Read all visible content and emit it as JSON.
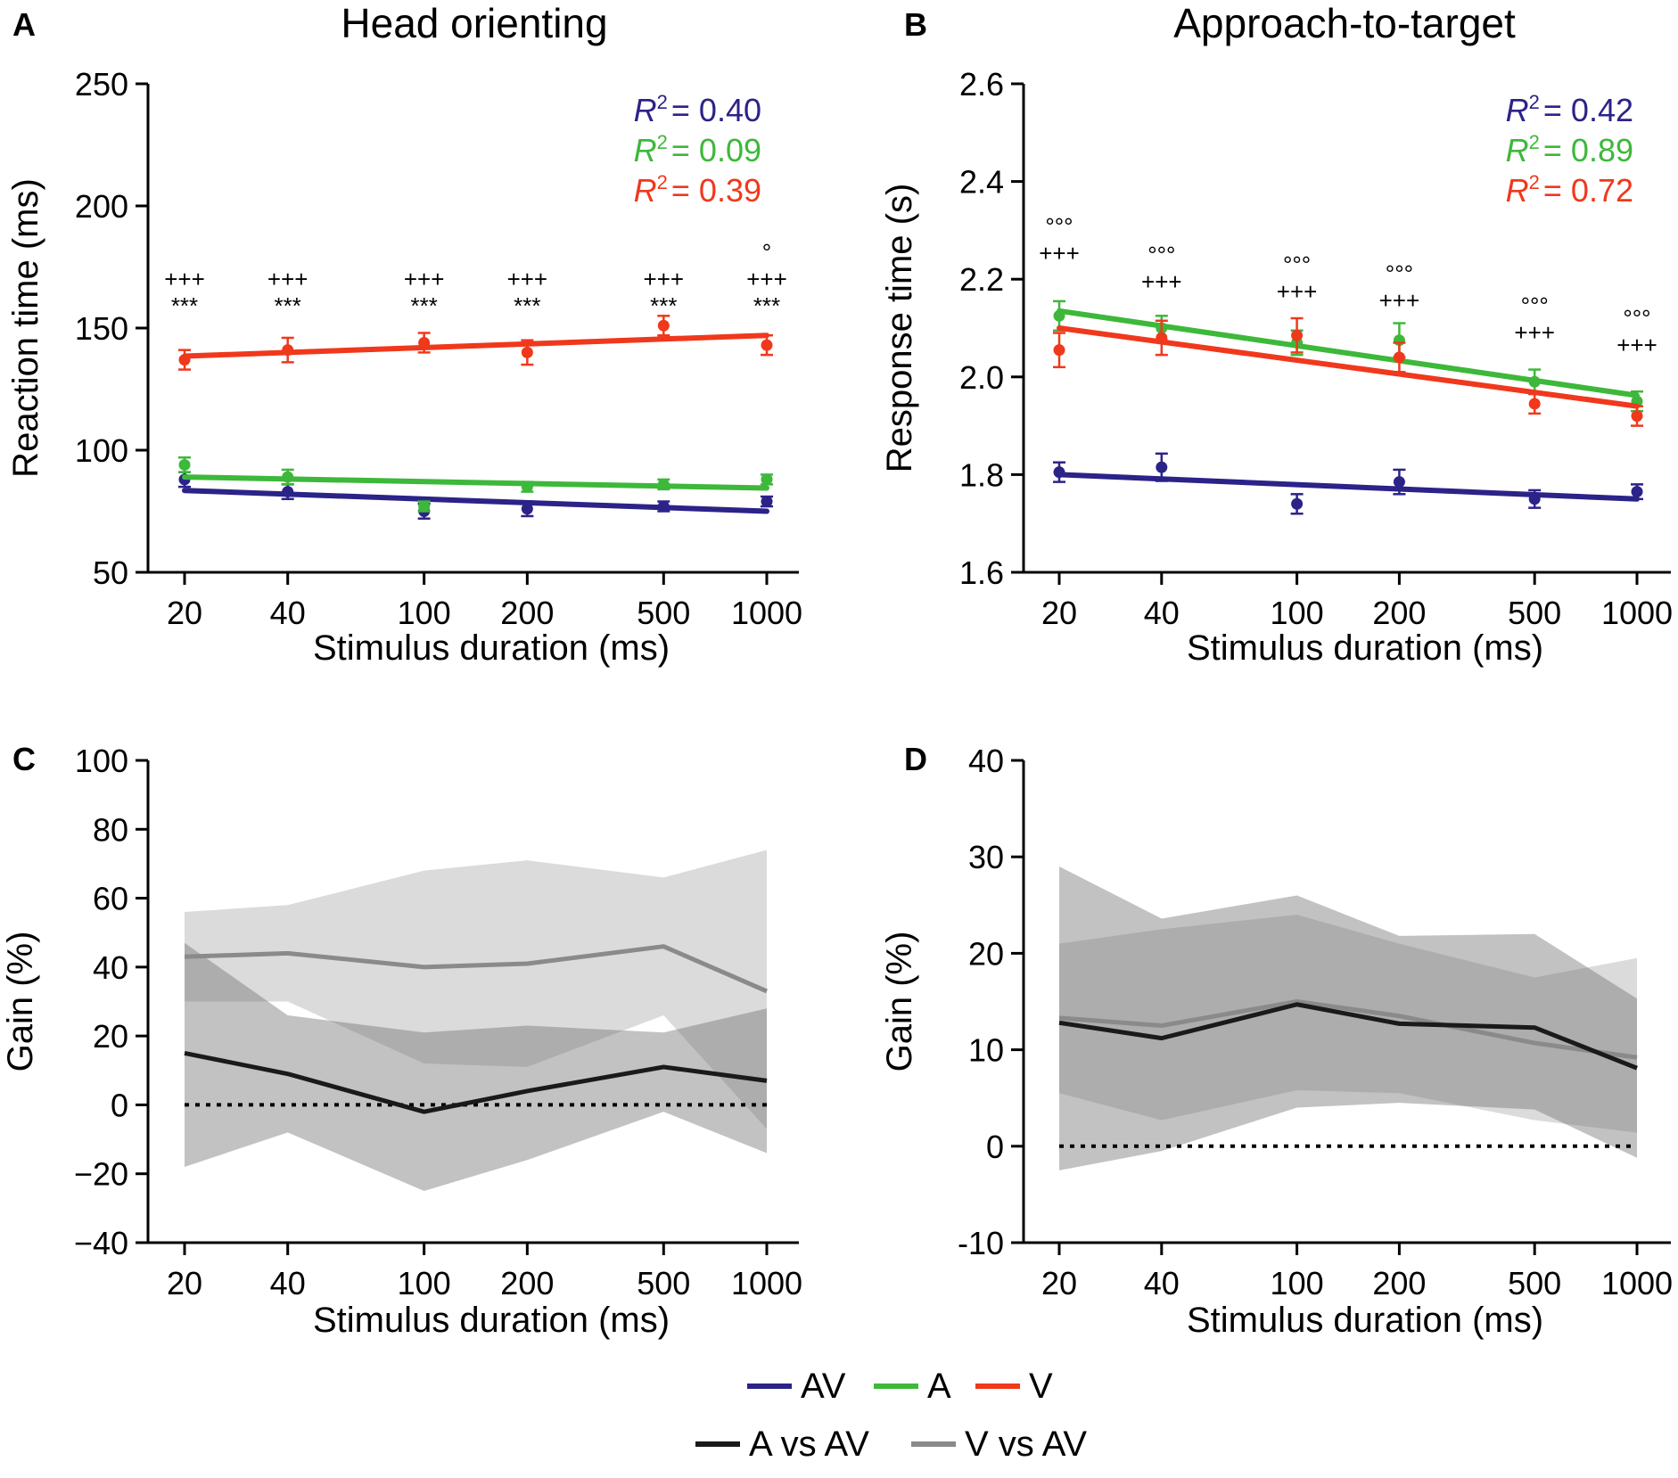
{
  "colors": {
    "AV": "#2b2388",
    "A": "#3db83a",
    "V": "#f0381c",
    "A_vs_AV": "#1a1a1a",
    "V_vs_AV": "#8a8a8a"
  },
  "legend": {
    "row1": [
      {
        "key": "AV",
        "label": "AV"
      },
      {
        "key": "A",
        "label": "A"
      },
      {
        "key": "V",
        "label": "V"
      }
    ],
    "row2": [
      {
        "key": "A_vs_AV",
        "label": "A vs AV"
      },
      {
        "key": "V_vs_AV",
        "label": "V vs AV"
      }
    ]
  },
  "chart_data": [
    {
      "id": "A",
      "panel_label": "A",
      "title": "Head orienting",
      "type": "line",
      "xlabel": "Stimulus duration (ms)",
      "ylabel": "Reaction time (ms)",
      "x_scale": "log",
      "x": [
        20,
        40,
        100,
        200,
        500,
        1000
      ],
      "x_ticks": [
        "20",
        "40",
        "100",
        "200",
        "500",
        "1000"
      ],
      "ylim": [
        50,
        250
      ],
      "y_ticks": [
        50,
        100,
        150,
        200,
        250
      ],
      "y_tick_labels": [
        "50",
        "100",
        "150",
        "200",
        "250"
      ],
      "series": [
        {
          "name": "AV",
          "points": [
            88,
            83,
            75,
            76,
            77,
            79
          ],
          "err": [
            3,
            3,
            3,
            3,
            2,
            2
          ],
          "fit": [
            83.5,
            75
          ]
        },
        {
          "name": "A",
          "points": [
            94,
            89,
            77,
            85,
            86,
            88
          ],
          "err": [
            3,
            3,
            2,
            2,
            2,
            2
          ],
          "fit": [
            89,
            84.5
          ]
        },
        {
          "name": "V",
          "points": [
            137,
            141,
            144,
            140,
            151,
            143
          ],
          "err": [
            4,
            5,
            4,
            5,
            4,
            4
          ],
          "fit": [
            138.5,
            147
          ]
        }
      ],
      "r2": [
        {
          "key": "AV",
          "label": "R",
          "sup": "2",
          "value": "= 0.40"
        },
        {
          "key": "A",
          "label": "R",
          "sup": "2",
          "value": "= 0.09"
        },
        {
          "key": "V",
          "label": "R",
          "sup": "2",
          "value": "= 0.39"
        }
      ],
      "annotations": [
        {
          "x": 20,
          "lines": [
            "+++",
            "***"
          ]
        },
        {
          "x": 40,
          "lines": [
            "+++",
            "***"
          ]
        },
        {
          "x": 100,
          "lines": [
            "+++",
            "***"
          ]
        },
        {
          "x": 200,
          "lines": [
            "+++",
            "***"
          ]
        },
        {
          "x": 500,
          "lines": [
            "+++",
            "***"
          ]
        },
        {
          "x": 1000,
          "lines": [
            "°",
            "+++",
            "***"
          ]
        }
      ]
    },
    {
      "id": "B",
      "panel_label": "B",
      "title": "Approach-to-target",
      "type": "line",
      "xlabel": "Stimulus duration (ms)",
      "ylabel": "Response time (s)",
      "x_scale": "log",
      "x": [
        20,
        40,
        100,
        200,
        500,
        1000
      ],
      "x_ticks": [
        "20",
        "40",
        "100",
        "200",
        "500",
        "1000"
      ],
      "ylim": [
        1.6,
        2.6
      ],
      "y_ticks": [
        1.6,
        1.8,
        2.0,
        2.2,
        2.4,
        2.6
      ],
      "y_tick_labels": [
        "1.6",
        "1.8",
        "2.0",
        "2.2",
        "2.4",
        "2.6"
      ],
      "series": [
        {
          "name": "AV",
          "points": [
            1.805,
            1.815,
            1.74,
            1.785,
            1.75,
            1.765
          ],
          "err": [
            0.02,
            0.028,
            0.02,
            0.025,
            0.018,
            0.015
          ],
          "fit": [
            1.8,
            1.75
          ]
        },
        {
          "name": "A",
          "points": [
            2.125,
            2.1,
            2.07,
            2.075,
            1.99,
            1.95
          ],
          "err": [
            0.03,
            0.025,
            0.025,
            0.035,
            0.025,
            0.02
          ],
          "fit": [
            2.135,
            1.962
          ]
        },
        {
          "name": "V",
          "points": [
            2.055,
            2.08,
            2.085,
            2.04,
            1.945,
            1.92
          ],
          "err": [
            0.035,
            0.035,
            0.035,
            0.03,
            0.02,
            0.02
          ],
          "fit": [
            2.1,
            1.94
          ]
        }
      ],
      "r2": [
        {
          "key": "AV",
          "label": "R",
          "sup": "2",
          "value": "= 0.42"
        },
        {
          "key": "A",
          "label": "R",
          "sup": "2",
          "value": "= 0.89"
        },
        {
          "key": "V",
          "label": "R",
          "sup": "2",
          "value": "= 0.72"
        }
      ],
      "annotations": [
        {
          "x": 20,
          "lines": [
            "°°°",
            "+++"
          ]
        },
        {
          "x": 40,
          "lines": [
            "°°°",
            "+++"
          ]
        },
        {
          "x": 100,
          "lines": [
            "°°°",
            "+++"
          ]
        },
        {
          "x": 200,
          "lines": [
            "°°°",
            "+++"
          ]
        },
        {
          "x": 500,
          "lines": [
            "°°°",
            "+++"
          ]
        },
        {
          "x": 1000,
          "lines": [
            "°°°",
            "+++"
          ]
        }
      ]
    },
    {
      "id": "C",
      "panel_label": "C",
      "title": "",
      "type": "area",
      "xlabel": "Stimulus duration (ms)",
      "ylabel": "Gain (%)",
      "x_scale": "log",
      "x": [
        20,
        40,
        100,
        200,
        500,
        1000
      ],
      "x_ticks": [
        "20",
        "40",
        "100",
        "200",
        "500",
        "1000"
      ],
      "ylim": [
        -40,
        100
      ],
      "y_ticks": [
        -40,
        -20,
        0,
        20,
        40,
        60,
        80,
        100
      ],
      "y_tick_labels": [
        "−40",
        "−20",
        "0",
        "20",
        "40",
        "60",
        "80",
        "100"
      ],
      "reference_line": 0,
      "series": [
        {
          "name": "V vs AV",
          "values": [
            43,
            44,
            40,
            41,
            46,
            33
          ],
          "upper": [
            56,
            58,
            68,
            71,
            66,
            74
          ],
          "lower": [
            30,
            30,
            12,
            11,
            26,
            -7
          ]
        },
        {
          "name": "A vs AV",
          "values": [
            15,
            9,
            -2,
            4,
            11,
            7
          ],
          "upper": [
            47,
            26,
            21,
            23,
            21,
            28
          ],
          "lower": [
            -18,
            -8,
            -25,
            -16,
            -2,
            -14
          ]
        }
      ]
    },
    {
      "id": "D",
      "panel_label": "D",
      "title": "",
      "type": "area",
      "xlabel": "Stimulus duration (ms)",
      "ylabel": "Gain (%)",
      "x_scale": "log",
      "x": [
        20,
        40,
        100,
        200,
        500,
        1000
      ],
      "x_ticks": [
        "20",
        "40",
        "100",
        "200",
        "500",
        "1000"
      ],
      "ylim": [
        -10,
        40
      ],
      "y_ticks": [
        -10,
        0,
        10,
        20,
        30,
        40
      ],
      "y_tick_labels": [
        "-10",
        "0",
        "10",
        "20",
        "30",
        "40"
      ],
      "reference_line": 0,
      "series": [
        {
          "name": "V vs AV",
          "values": [
            13.3,
            12.5,
            15,
            13.5,
            10.7,
            9.2
          ],
          "upper": [
            21,
            22.5,
            24,
            21,
            17.5,
            19.5
          ],
          "lower": [
            5.5,
            2.7,
            5.8,
            5.5,
            2.7,
            1.4
          ]
        },
        {
          "name": "A vs AV",
          "values": [
            12.8,
            11.2,
            14.7,
            12.7,
            12.3,
            8.1
          ],
          "upper": [
            29,
            23.6,
            26,
            21.8,
            22,
            15.3
          ],
          "lower": [
            -2.5,
            -0.5,
            4,
            4.5,
            3.8,
            -1.2
          ]
        }
      ]
    }
  ]
}
